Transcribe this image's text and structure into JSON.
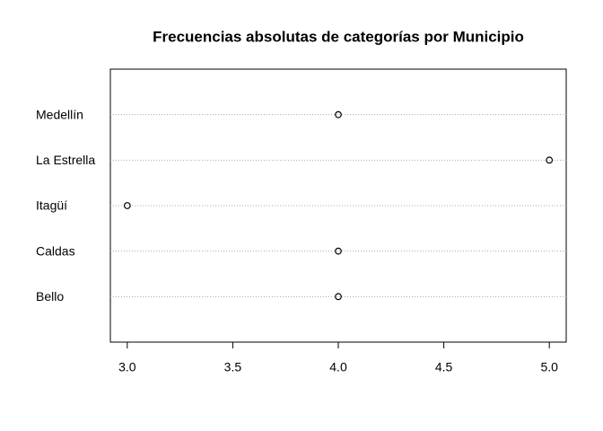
{
  "chart_data": {
    "type": "dot",
    "title": "Frecuencias absolutas de categorías por Municipio",
    "categories": [
      "Bello",
      "Caldas",
      "Itagüí",
      "La Estrella",
      "Medellín"
    ],
    "values": [
      4,
      4,
      3,
      5,
      4
    ],
    "color": "#000000",
    "xlim": [
      2.92,
      5.08
    ],
    "xticks": [
      {
        "value": 3,
        "label": "3.0"
      },
      3.5,
      {
        "value": 4,
        "label": "4.0"
      },
      4.5,
      {
        "value": 5,
        "label": "5.0"
      }
    ]
  }
}
